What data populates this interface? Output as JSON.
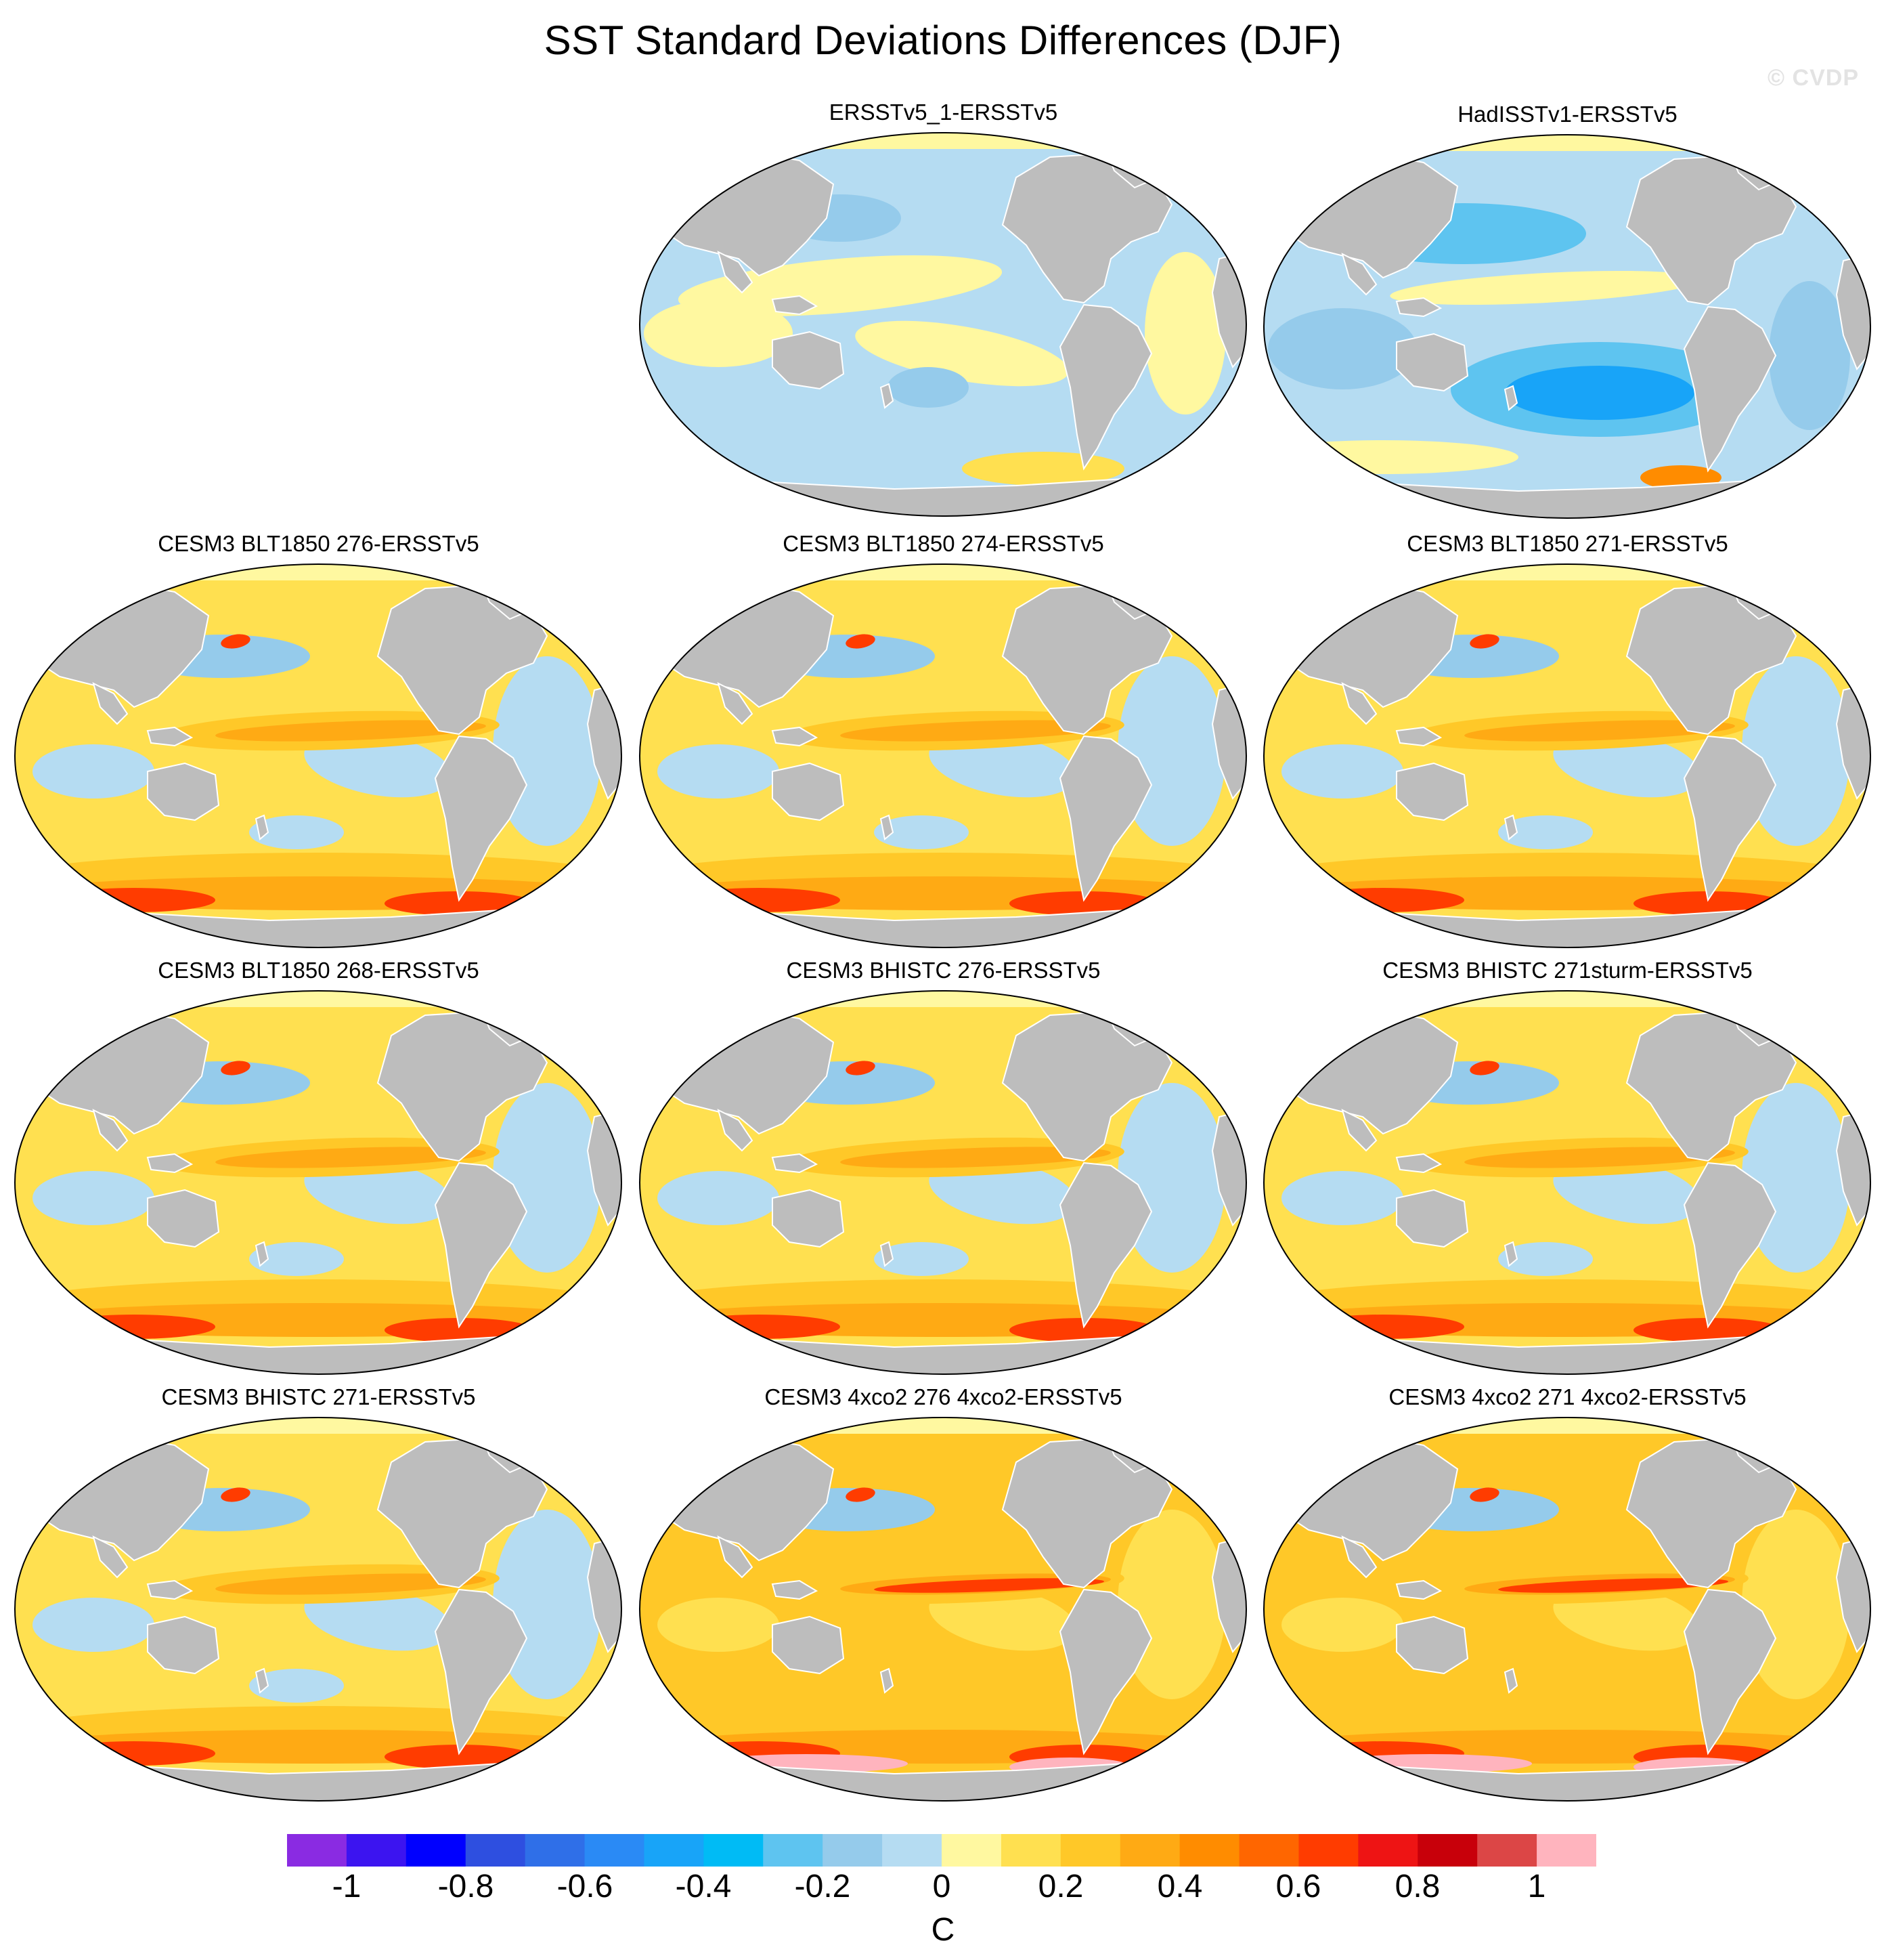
{
  "title": "SST Standard Deviations Differences (DJF)",
  "watermark": "© CVDP",
  "panels": [
    {
      "title": "ERSSTv5_1-ERSSTv5",
      "style": "cool"
    },
    {
      "title": "HadISSTv1-ERSSTv5",
      "style": "coolstrong"
    },
    {
      "title": "CESM3 BLT1850 276-ERSSTv5",
      "style": "warm"
    },
    {
      "title": "CESM3 BLT1850 274-ERSSTv5",
      "style": "warm"
    },
    {
      "title": "CESM3 BLT1850 271-ERSSTv5",
      "style": "warm"
    },
    {
      "title": "CESM3 BLT1850 268-ERSSTv5",
      "style": "warm"
    },
    {
      "title": "CESM3 BHISTC 276-ERSSTv5",
      "style": "warm"
    },
    {
      "title": "CESM3 BHISTC 271sturm-ERSSTv5",
      "style": "warm"
    },
    {
      "title": "CESM3 BHISTC 271-ERSSTv5",
      "style": "warm"
    },
    {
      "title": "CESM3 4xco2 276 4xco2-ERSSTv5",
      "style": "hot"
    },
    {
      "title": "CESM3 4xco2 271 4xco2-ERSSTv5",
      "style": "hot"
    }
  ],
  "colorbar": {
    "colors": [
      "#8a2be2",
      "#3c14f0",
      "#0000ff",
      "#2e4fe0",
      "#2f6fe8",
      "#2a8af5",
      "#18a4f8",
      "#00bbf5",
      "#5ec4f0",
      "#95cbeb",
      "#b5dcf2",
      "#fff8a0",
      "#ffe050",
      "#ffc828",
      "#ffaa14",
      "#ff8c00",
      "#ff6600",
      "#ff3c00",
      "#ee1414",
      "#c8000a",
      "#dc4646",
      "#ffb4be"
    ],
    "tick_labels": [
      "-1",
      "-0.8",
      "-0.6",
      "-0.4",
      "-0.2",
      "0",
      "0.2",
      "0.4",
      "0.6",
      "0.8",
      "1"
    ],
    "units": "C"
  },
  "chart_data": {
    "type": "heatmap",
    "title": "SST Standard Deviations Differences (DJF)",
    "variable": "SST standard deviation difference",
    "season": "DJF",
    "units": "C",
    "value_range": [
      -1.1,
      1.1
    ],
    "contour_levels": [
      -1,
      -0.9,
      -0.8,
      -0.7,
      -0.6,
      -0.5,
      -0.4,
      -0.3,
      -0.2,
      -0.1,
      0,
      0.1,
      0.2,
      0.3,
      0.4,
      0.5,
      0.6,
      0.7,
      0.8,
      0.9,
      1
    ],
    "panel_titles": [
      "ERSSTv5_1-ERSSTv5",
      "HadISSTv1-ERSSTv5",
      "CESM3 BLT1850 276-ERSSTv5",
      "CESM3 BLT1850 274-ERSSTv5",
      "CESM3 BLT1850 271-ERSSTv5",
      "CESM3 BLT1850 268-ERSSTv5",
      "CESM3 BHISTC 276-ERSSTv5",
      "CESM3 BHISTC 271sturm-ERSSTv5",
      "CESM3 BHISTC 271-ERSSTv5",
      "CESM3 4xco2 276 4xco2-ERSSTv5",
      "CESM3 4xco2 271 4xco2-ERSSTv5"
    ]
  }
}
